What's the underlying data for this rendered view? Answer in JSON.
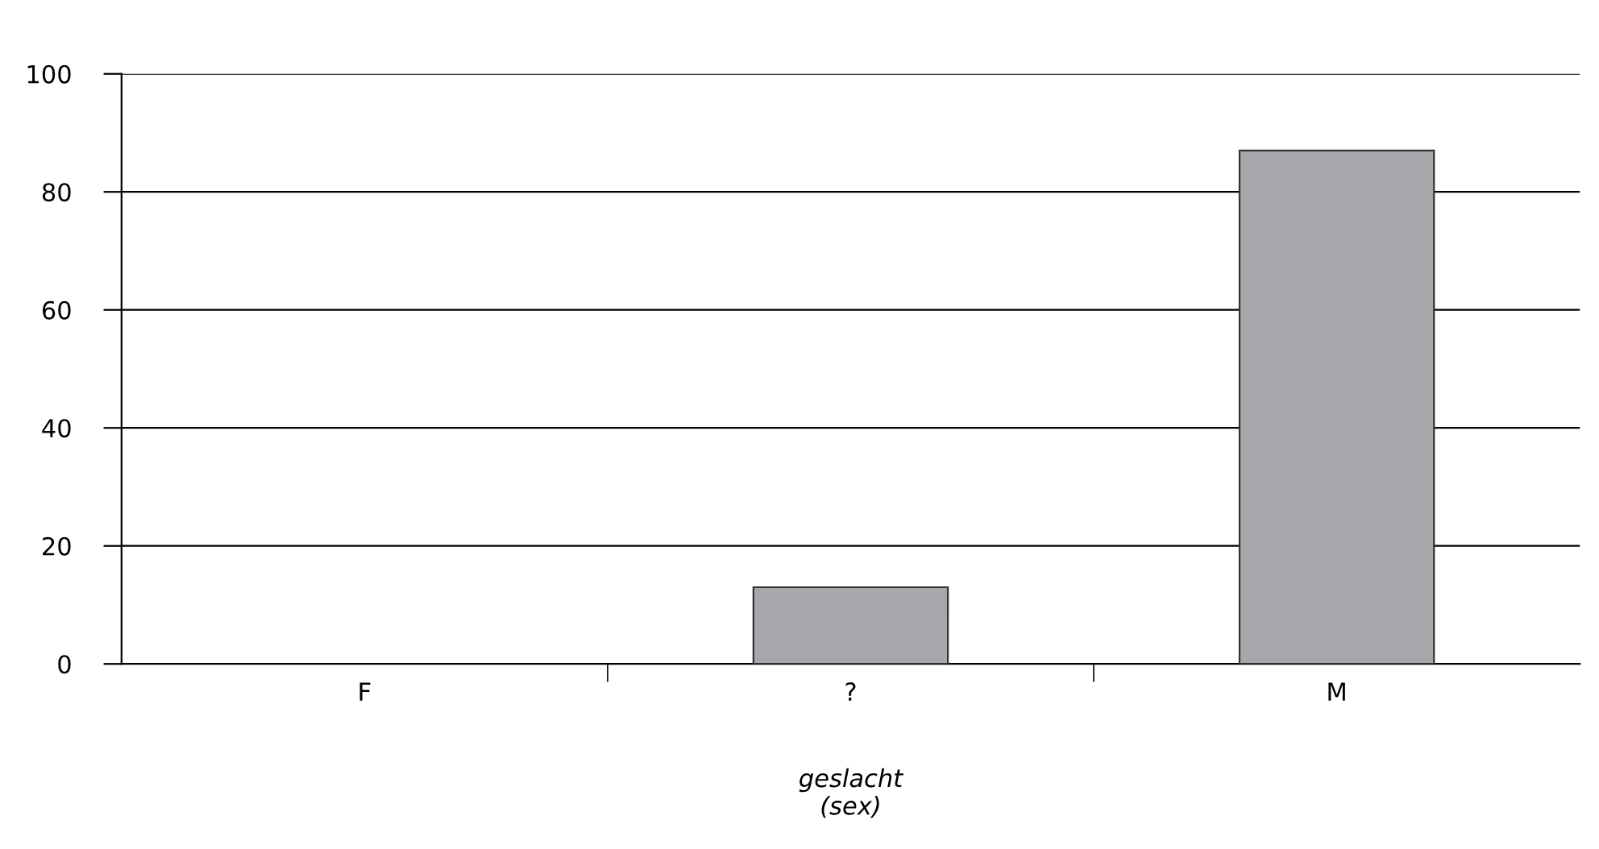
{
  "chart_data": {
    "type": "bar",
    "xlabel": "geslacht\n(sex)",
    "categories": [
      "F",
      "?",
      "M"
    ],
    "values": [
      0,
      13,
      87
    ],
    "color": "#a7a8ab",
    "ylim": [
      0,
      100
    ],
    "yticks": [
      0,
      20,
      40,
      60,
      80,
      100
    ],
    "grid": "y",
    "legend": false
  }
}
